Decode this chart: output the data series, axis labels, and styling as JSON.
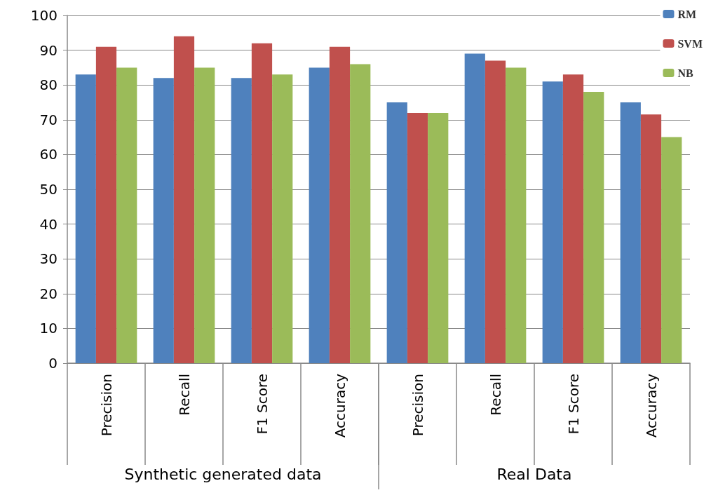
{
  "chart_data": {
    "type": "bar",
    "categories": [
      "Precision",
      "Recall",
      "F1 Score",
      "Accuracy",
      "Precision",
      "Recall",
      "F1 Score",
      "Accuracy"
    ],
    "series": [
      {
        "name": "RM",
        "color": "#4f81bd",
        "values": [
          83,
          82,
          82,
          85,
          75,
          89,
          81,
          75
        ]
      },
      {
        "name": "SVM",
        "color": "#c0504d",
        "values": [
          91,
          94,
          92,
          91,
          72,
          87,
          83,
          71.5
        ]
      },
      {
        "name": "NB",
        "color": "#9bbb59",
        "values": [
          85,
          85,
          83,
          86,
          72,
          85,
          78,
          65
        ]
      }
    ],
    "annotations": [
      "Synthetic generated data",
      "Real Data"
    ],
    "ylim": [
      0,
      100
    ],
    "yticks": [
      0,
      10,
      20,
      30,
      40,
      50,
      60,
      70,
      80,
      90,
      100
    ],
    "grid": "y",
    "legend": "top right"
  }
}
